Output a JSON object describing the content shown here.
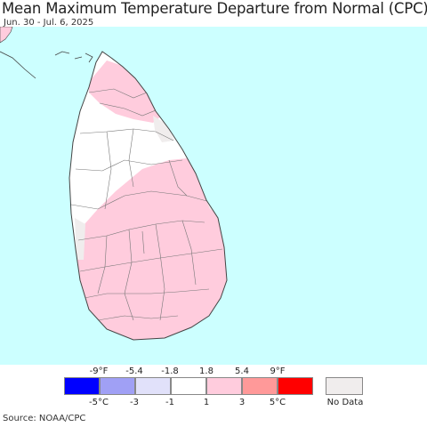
{
  "header": {
    "title": "Mean Maximum Temperature Departure from Normal (CPC)",
    "date_range": "Jun. 30 - Jul. 6, 2025"
  },
  "map": {
    "region": "Sri Lanka",
    "ocean_color": "#ccffff",
    "land_color": "#ffffff",
    "border_color": "#555555"
  },
  "legend": {
    "fahrenheit_ticks": [
      "-9°F",
      "-5.4",
      "-1.8",
      "1.8",
      "5.4",
      "9°F"
    ],
    "celsius_ticks": [
      "-5°C",
      "-3",
      "-1",
      "1",
      "3",
      "5°C"
    ],
    "bins": [
      {
        "color": "#0000ff"
      },
      {
        "color": "#a0a0f5"
      },
      {
        "color": "#e1e1fa"
      },
      {
        "color": "#ffffff"
      },
      {
        "color": "#ffccdd"
      },
      {
        "color": "#ff9999"
      },
      {
        "color": "#ff0000"
      }
    ],
    "no_data": {
      "label": "No Data",
      "color": "#f0eded"
    }
  },
  "footer": {
    "source": "Source: NOAA/CPC"
  }
}
